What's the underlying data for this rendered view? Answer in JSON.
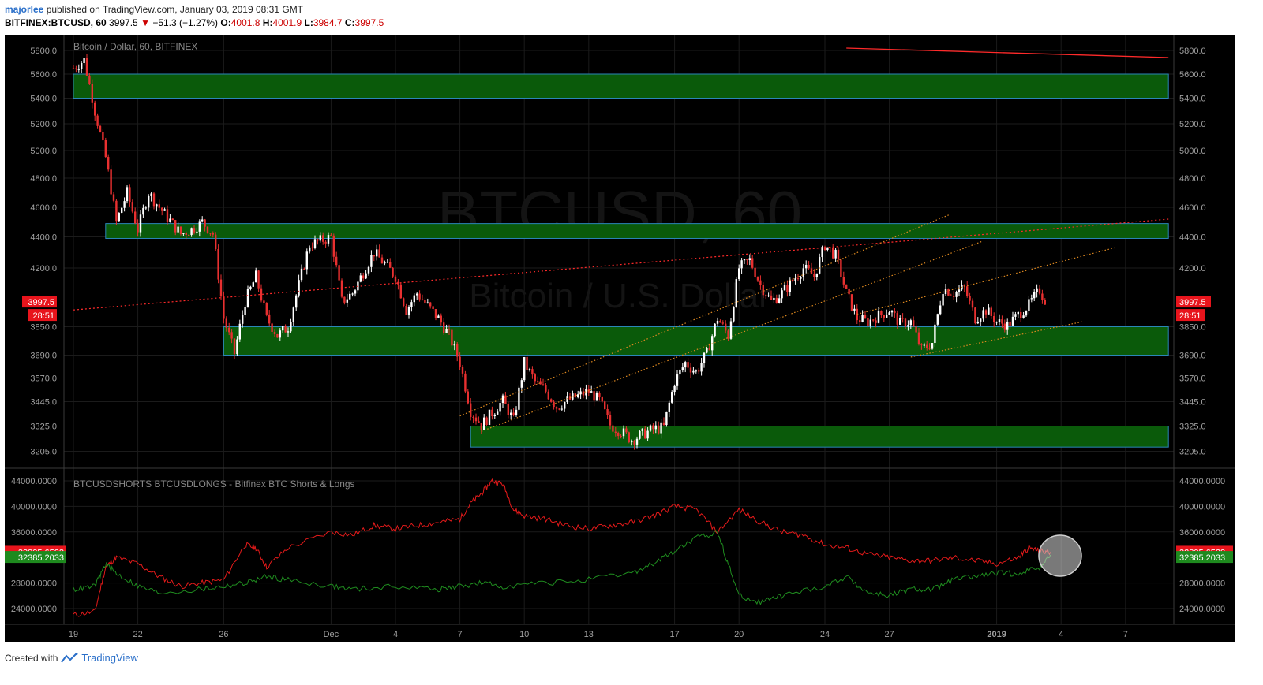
{
  "header": {
    "author": "majorlee",
    "published_text": "published on TradingView.com, January 03, 2019 08:31 GMT",
    "symbol_line": "BITFINEX:BTCUSD, 60",
    "last": "3997.5",
    "change": "−51.3 (−1.27%)",
    "o_label": "O:",
    "o": "4001.8",
    "h_label": "H:",
    "h": "4001.9",
    "l_label": "L:",
    "l": "3984.7",
    "c_label": "C:",
    "c": "3997.5"
  },
  "footer": {
    "created_with": "Created with",
    "brand": "TradingView"
  },
  "colors": {
    "background": "#000000",
    "up": "#ffffff",
    "down": "#e83030",
    "green_zone": "#0a5a0a",
    "shorts": "#e51a1a",
    "longs": "#1f8c1f",
    "trend_red": "#ff2a2a",
    "channel": "#e08a20"
  },
  "chart_data": [
    {
      "type": "candlestick",
      "title": "Bitcoin / Dollar, 60, BITFINEX",
      "watermark_title": "BTCUSD, 60",
      "watermark_sub": "Bitcoin / U.S. Dollar",
      "y_ticks": [
        "5800.0",
        "5600.0",
        "5400.0",
        "5200.0",
        "5000.0",
        "4800.0",
        "4600.0",
        "4400.0",
        "4200.0",
        "3850.0",
        "3690.0",
        "3570.0",
        "3445.0",
        "3325.0",
        "3205.0"
      ],
      "y_tick_values": [
        5800,
        5600,
        5400,
        5200,
        5000,
        4800,
        4600,
        4400,
        4200,
        3850,
        3690,
        3570,
        3445,
        3325,
        3205
      ],
      "x_ticks": [
        "19",
        "22",
        "26",
        "Dec",
        "4",
        "7",
        "10",
        "13",
        "17",
        "20",
        "24",
        "27",
        "2019",
        "4",
        "7"
      ],
      "x_tick_days": [
        0,
        3,
        7,
        12,
        15,
        18,
        21,
        24,
        28,
        31,
        35,
        38,
        43,
        46,
        49
      ],
      "last_price_label": "3997.5",
      "countdown_label": "28:51",
      "last_price": 3997.5,
      "path": [
        [
          0,
          5650
        ],
        [
          0.5,
          5720
        ],
        [
          1,
          5300
        ],
        [
          1.5,
          4950
        ],
        [
          2,
          4500
        ],
        [
          2.5,
          4700
        ],
        [
          3,
          4450
        ],
        [
          3.5,
          4700
        ],
        [
          4,
          4600
        ],
        [
          5,
          4420
        ],
        [
          5.5,
          4450
        ],
        [
          6,
          4500
        ],
        [
          6.5,
          4420
        ],
        [
          7,
          3900
        ],
        [
          7.5,
          3700
        ],
        [
          8,
          4000
        ],
        [
          8.5,
          4150
        ],
        [
          9,
          3900
        ],
        [
          9.5,
          3800
        ],
        [
          10,
          3850
        ],
        [
          10.5,
          4100
        ],
        [
          11,
          4350
        ],
        [
          12,
          4400
        ],
        [
          12.5,
          4000
        ],
        [
          13,
          4050
        ],
        [
          14,
          4300
        ],
        [
          15,
          4150
        ],
        [
          15.5,
          3950
        ],
        [
          16,
          4050
        ],
        [
          17,
          3900
        ],
        [
          17.5,
          3800
        ],
        [
          18,
          3650
        ],
        [
          18.5,
          3400
        ],
        [
          19,
          3330
        ],
        [
          20,
          3450
        ],
        [
          20.5,
          3350
        ],
        [
          21,
          3650
        ],
        [
          21.5,
          3550
        ],
        [
          22,
          3500
        ],
        [
          22.5,
          3420
        ],
        [
          23,
          3450
        ],
        [
          24,
          3500
        ],
        [
          24.5,
          3450
        ],
        [
          25,
          3330
        ],
        [
          25.5,
          3300
        ],
        [
          26,
          3260
        ],
        [
          27,
          3310
        ],
        [
          27.5,
          3320
        ],
        [
          28,
          3550
        ],
        [
          28.5,
          3650
        ],
        [
          29,
          3600
        ],
        [
          29.5,
          3700
        ],
        [
          30,
          3900
        ],
        [
          30.5,
          3800
        ],
        [
          31,
          4200
        ],
        [
          31.5,
          4250
        ],
        [
          32,
          4100
        ],
        [
          32.5,
          4000
        ],
        [
          33,
          4050
        ],
        [
          34,
          4200
        ],
        [
          34.5,
          4150
        ],
        [
          35,
          4350
        ],
        [
          35.5,
          4280
        ],
        [
          36,
          4050
        ],
        [
          36.5,
          3900
        ],
        [
          37,
          3880
        ],
        [
          38,
          3950
        ],
        [
          38.5,
          3870
        ],
        [
          39,
          3880
        ],
        [
          39.5,
          3720
        ],
        [
          40,
          3760
        ],
        [
          40.5,
          4080
        ],
        [
          41,
          4050
        ],
        [
          41.5,
          4080
        ],
        [
          42,
          3900
        ],
        [
          42.5,
          3950
        ],
        [
          43,
          3880
        ],
        [
          43.5,
          3860
        ],
        [
          44,
          3920
        ],
        [
          44.5,
          3980
        ],
        [
          45,
          4070
        ],
        [
          45.3,
          3997.5
        ]
      ],
      "zones": [
        {
          "d1": 0,
          "d2": 51,
          "p1": 5400,
          "p2": 5600
        },
        {
          "d1": 1.5,
          "d2": 51,
          "p1": 4390,
          "p2": 4490
        },
        {
          "d1": 7,
          "d2": 51,
          "p1": 3690,
          "p2": 3850
        },
        {
          "d1": 18.5,
          "d2": 51,
          "p1": 3225,
          "p2": 3325
        }
      ],
      "trendlines": [
        {
          "kind": "solid",
          "color": "red",
          "d1": 36,
          "p1": 5820,
          "d2": 51,
          "p2": 5740
        },
        {
          "kind": "dotted",
          "color": "red",
          "d1": 0,
          "p1": 3950,
          "d2": 51,
          "p2": 4520
        },
        {
          "kind": "dotted",
          "color": "orange",
          "d1": 18,
          "p1": 3375,
          "d2": 40.8,
          "p2": 4550
        },
        {
          "kind": "dotted",
          "color": "orange",
          "d1": 19,
          "p1": 3300,
          "d2": 42.3,
          "p2": 4370
        },
        {
          "kind": "dotted",
          "color": "orange",
          "d1": 36.5,
          "p1": 3925,
          "d2": 48.5,
          "p2": 4330
        },
        {
          "kind": "dotted",
          "color": "orange",
          "d1": 39,
          "p1": 3680,
          "d2": 47,
          "p2": 3880
        }
      ]
    },
    {
      "type": "line",
      "title": "BTCUSDSHORTS BTCUSDLONGS - Bitfinex BTC Shorts & Longs",
      "y_ticks": [
        "44000.0000",
        "40000.0000",
        "36000.0000",
        "28000.0000",
        "24000.0000"
      ],
      "y_tick_values": [
        44000,
        40000,
        36000,
        28000,
        24000
      ],
      "last_labels": [
        "32835.6528",
        "32385.2033"
      ],
      "series": [
        {
          "values": [
            [
              0,
              23000
            ],
            [
              1,
              23500
            ],
            [
              1.5,
              30500
            ],
            [
              2,
              32000
            ],
            [
              3,
              31000
            ],
            [
              4,
              29000
            ],
            [
              5,
              27500
            ],
            [
              6,
              28000
            ],
            [
              7,
              28500
            ],
            [
              8,
              34000
            ],
            [
              8.5,
              33500
            ],
            [
              9,
              30500
            ],
            [
              10,
              33500
            ],
            [
              12,
              36000
            ],
            [
              13,
              35500
            ],
            [
              14,
              37000
            ],
            [
              15,
              36500
            ],
            [
              16,
              37000
            ],
            [
              17,
              37500
            ],
            [
              18,
              38000
            ],
            [
              18.5,
              40500
            ],
            [
              19,
              42000
            ],
            [
              19.5,
              44000
            ],
            [
              20,
              43500
            ],
            [
              20.5,
              39500
            ],
            [
              21,
              38500
            ],
            [
              22,
              38000
            ],
            [
              23,
              37000
            ],
            [
              24,
              36500
            ],
            [
              25,
              37000
            ],
            [
              26,
              37500
            ],
            [
              27,
              38500
            ],
            [
              28,
              40000
            ],
            [
              29,
              39500
            ],
            [
              30,
              36000
            ],
            [
              31,
              39500
            ],
            [
              32,
              37500
            ],
            [
              33,
              36000
            ],
            [
              34,
              35500
            ],
            [
              35,
              34000
            ],
            [
              36,
              33500
            ],
            [
              37,
              32500
            ],
            [
              38,
              32000
            ],
            [
              39,
              31500
            ],
            [
              40,
              31500
            ],
            [
              41,
              32000
            ],
            [
              42,
              31500
            ],
            [
              43,
              31000
            ],
            [
              44,
              32000
            ],
            [
              44.5,
              33500
            ],
            [
              45,
              33000
            ],
            [
              45.5,
              32835
            ]
          ]
        },
        {
          "values": [
            [
              0,
              27000
            ],
            [
              1,
              27500
            ],
            [
              1.5,
              31000
            ],
            [
              2,
              29500
            ],
            [
              3,
              27500
            ],
            [
              4,
              26500
            ],
            [
              6,
              27000
            ],
            [
              7,
              27500
            ],
            [
              8,
              28000
            ],
            [
              9,
              29000
            ],
            [
              10,
              28500
            ],
            [
              12,
              27500
            ],
            [
              13,
              27000
            ],
            [
              15,
              27500
            ],
            [
              17,
              27000
            ],
            [
              18,
              27500
            ],
            [
              19,
              28000
            ],
            [
              20,
              27500
            ],
            [
              22,
              28000
            ],
            [
              24,
              28500
            ],
            [
              26,
              29500
            ],
            [
              27,
              31000
            ],
            [
              28,
              33000
            ],
            [
              29,
              35000
            ],
            [
              30,
              36000
            ],
            [
              30.5,
              31000
            ],
            [
              31,
              26000
            ],
            [
              32,
              25000
            ],
            [
              33,
              26000
            ],
            [
              35,
              27500
            ],
            [
              36,
              29000
            ],
            [
              37,
              26500
            ],
            [
              38,
              26000
            ],
            [
              39,
              27000
            ],
            [
              40,
              27000
            ],
            [
              41,
              28500
            ],
            [
              42,
              29000
            ],
            [
              43,
              29500
            ],
            [
              44,
              29500
            ],
            [
              45,
              30500
            ],
            [
              45.5,
              32385
            ]
          ]
        }
      ]
    }
  ]
}
